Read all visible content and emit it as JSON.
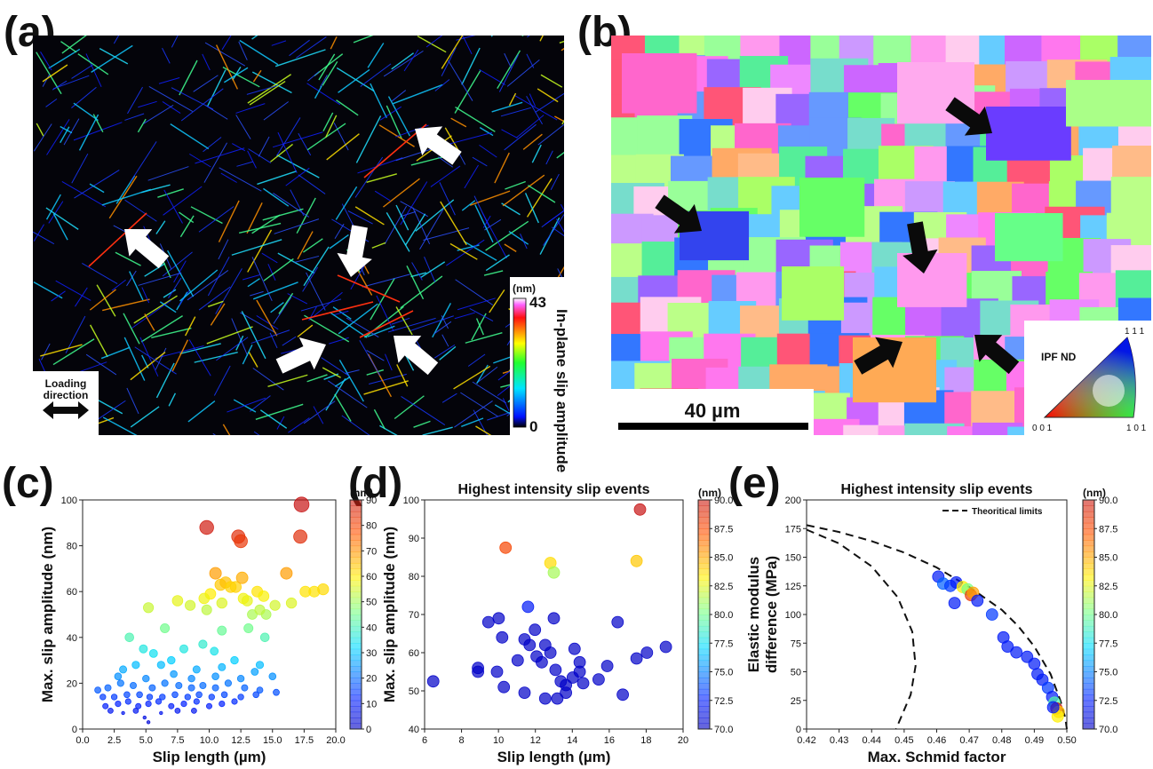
{
  "panels": {
    "a": {
      "letter": "(a)",
      "colorbar": {
        "unit": "(nm)",
        "max_label": "43",
        "min_label": "0",
        "label": "In-plane slip amplitude"
      },
      "loading_label_1": "Loading",
      "loading_label_2": "direction"
    },
    "b": {
      "letter": "(b)",
      "scalebar": "40 µm",
      "ipf": {
        "title": "IPF ND",
        "top": "1 1 1",
        "left": "0 0 1",
        "right": "1 0 1"
      }
    },
    "c": {
      "letter": "(c)"
    },
    "d": {
      "letter": "(d)"
    },
    "e": {
      "letter": "(e)"
    }
  },
  "colors": {
    "map_background": "#04040a",
    "arrow": "#ffffff",
    "arrow_dark": "#0a0a0a"
  },
  "chart_data": [
    {
      "id": "c",
      "type": "scatter",
      "title": "",
      "xlabel": "Slip length (µm)",
      "ylabel": "Max. slip amplitude (nm)",
      "xlim": [
        0.0,
        20.0
      ],
      "ylim": [
        0,
        100
      ],
      "xticks": [
        "0.0",
        "2.5",
        "5.0",
        "7.5",
        "10.0",
        "12.5",
        "15.0",
        "17.5",
        "20.0"
      ],
      "yticks": [
        "0",
        "20",
        "40",
        "60",
        "80",
        "100"
      ],
      "colorbar": {
        "label": "(nm)",
        "range": [
          0,
          90
        ],
        "ticks": [
          "0",
          "10",
          "20",
          "30",
          "40",
          "50",
          "60",
          "70",
          "80",
          "90"
        ]
      },
      "points": [
        [
          9.8,
          88
        ],
        [
          12.3,
          84
        ],
        [
          12.5,
          82
        ],
        [
          17.3,
          98
        ],
        [
          17.2,
          84
        ],
        [
          16.1,
          68
        ],
        [
          10.5,
          68
        ],
        [
          10.9,
          63
        ],
        [
          11.3,
          64
        ],
        [
          12.1,
          62
        ],
        [
          12.6,
          66
        ],
        [
          11.7,
          62
        ],
        [
          13.8,
          60
        ],
        [
          14.3,
          58
        ],
        [
          13.0,
          56
        ],
        [
          11.0,
          55
        ],
        [
          10.1,
          59
        ],
        [
          9.6,
          57
        ],
        [
          7.5,
          56
        ],
        [
          8.5,
          54
        ],
        [
          9.8,
          52
        ],
        [
          12.7,
          57
        ],
        [
          14.5,
          50
        ],
        [
          15.2,
          54
        ],
        [
          16.5,
          55
        ],
        [
          17.6,
          60
        ],
        [
          18.3,
          60
        ],
        [
          19.0,
          61
        ],
        [
          13.4,
          50
        ],
        [
          14.0,
          52
        ],
        [
          5.2,
          53
        ],
        [
          6.5,
          44
        ],
        [
          3.7,
          40
        ],
        [
          11.0,
          43
        ],
        [
          14.4,
          40
        ],
        [
          13.1,
          44
        ],
        [
          9.5,
          37
        ],
        [
          8.0,
          35
        ],
        [
          10.4,
          34
        ],
        [
          5.6,
          33
        ],
        [
          4.8,
          35
        ],
        [
          7.0,
          30
        ],
        [
          12.0,
          30
        ],
        [
          14.0,
          28
        ],
        [
          3.2,
          26
        ],
        [
          4.2,
          28
        ],
        [
          6.2,
          28
        ],
        [
          9.0,
          26
        ],
        [
          11.0,
          27
        ],
        [
          13.6,
          25
        ],
        [
          2.8,
          23
        ],
        [
          5.0,
          22
        ],
        [
          7.2,
          24
        ],
        [
          8.6,
          22
        ],
        [
          10.5,
          23
        ],
        [
          12.5,
          22
        ],
        [
          15.0,
          23
        ],
        [
          1.2,
          17
        ],
        [
          2.0,
          18
        ],
        [
          3.0,
          20
        ],
        [
          4.0,
          19
        ],
        [
          5.5,
          18
        ],
        [
          6.5,
          20
        ],
        [
          7.6,
          19
        ],
        [
          8.6,
          18
        ],
        [
          9.5,
          19
        ],
        [
          10.5,
          18
        ],
        [
          11.5,
          20
        ],
        [
          12.8,
          18
        ],
        [
          14.0,
          17
        ],
        [
          1.6,
          14
        ],
        [
          2.5,
          14
        ],
        [
          3.5,
          15
        ],
        [
          4.5,
          15
        ],
        [
          5.3,
          14
        ],
        [
          6.3,
          14
        ],
        [
          7.3,
          15
        ],
        [
          8.3,
          14
        ],
        [
          9.2,
          15
        ],
        [
          10.2,
          14
        ],
        [
          11.2,
          15
        ],
        [
          12.5,
          14
        ],
        [
          13.7,
          15
        ],
        [
          15.3,
          16
        ],
        [
          1.8,
          10
        ],
        [
          2.8,
          11
        ],
        [
          3.6,
          12
        ],
        [
          4.4,
          10
        ],
        [
          5.2,
          11
        ],
        [
          6.0,
          12
        ],
        [
          7.0,
          10
        ],
        [
          8.0,
          11
        ],
        [
          9.0,
          12
        ],
        [
          10.0,
          10
        ],
        [
          11.0,
          11
        ],
        [
          12.0,
          12
        ],
        [
          2.2,
          8
        ],
        [
          3.2,
          7
        ],
        [
          4.2,
          8
        ],
        [
          4.9,
          5
        ],
        [
          5.2,
          3
        ],
        [
          6.2,
          7
        ],
        [
          7.5,
          8
        ],
        [
          8.8,
          8
        ]
      ]
    },
    {
      "id": "d",
      "type": "scatter",
      "title": "Highest intensity slip events",
      "xlabel": "Slip length (µm)",
      "ylabel": "Max. slip amplitude (nm)",
      "xlim": [
        5.0,
        20.0
      ],
      "ylim": [
        40,
        100
      ],
      "xticks": [
        "6",
        "8",
        "10",
        "12",
        "14",
        "16",
        "18",
        "20"
      ],
      "yticks": [
        "40",
        "50",
        "60",
        "70",
        "80",
        "90",
        "100"
      ],
      "colorbar": {
        "label": "(nm)",
        "range": [
          70.0,
          90.0
        ],
        "ticks": [
          "70.0",
          "72.5",
          "75.0",
          "77.5",
          "80.0",
          "82.5",
          "85.0",
          "87.5",
          "90.0"
        ]
      },
      "points": [
        [
          17.5,
          97.5
        ],
        [
          9.7,
          87.5
        ],
        [
          12.3,
          83.5
        ],
        [
          17.3,
          84.0
        ],
        [
          12.5,
          81.0
        ],
        [
          11.0,
          72.0
        ],
        [
          8.7,
          68.0
        ],
        [
          9.3,
          69.0
        ],
        [
          12.5,
          69.0
        ],
        [
          16.2,
          68.0
        ],
        [
          10.8,
          63.5
        ],
        [
          11.4,
          66.0
        ],
        [
          9.5,
          64.0
        ],
        [
          12.0,
          62.0
        ],
        [
          13.7,
          61.0
        ],
        [
          19.0,
          61.5
        ],
        [
          17.9,
          60.0
        ],
        [
          17.3,
          58.5
        ],
        [
          8.1,
          56.0
        ],
        [
          8.1,
          55.0
        ],
        [
          9.2,
          55.0
        ],
        [
          11.1,
          62.0
        ],
        [
          11.5,
          59.0
        ],
        [
          11.8,
          57.5
        ],
        [
          12.3,
          60.0
        ],
        [
          12.6,
          55.5
        ],
        [
          13.2,
          51.5
        ],
        [
          13.6,
          53.5
        ],
        [
          14.0,
          57.5
        ],
        [
          14.0,
          55.0
        ],
        [
          14.2,
          52.0
        ],
        [
          15.1,
          53.0
        ],
        [
          15.6,
          56.5
        ],
        [
          16.5,
          49.0
        ],
        [
          5.5,
          52.5
        ],
        [
          9.6,
          51.0
        ],
        [
          10.8,
          49.5
        ],
        [
          12.0,
          48.0
        ],
        [
          12.7,
          48.0
        ],
        [
          13.2,
          49.5
        ],
        [
          12.9,
          52.5
        ],
        [
          10.4,
          58.0
        ]
      ]
    },
    {
      "id": "e",
      "type": "scatter",
      "title": "Highest intensity slip events",
      "xlabel": "Max. Schmid factor",
      "ylabel": "Elastic modulus difference (MPa)",
      "xlim": [
        0.42,
        0.5
      ],
      "ylim": [
        0,
        200
      ],
      "xticks": [
        "0.42",
        "0.43",
        "0.44",
        "0.45",
        "0.46",
        "0.47",
        "0.48",
        "0.49",
        "0.50"
      ],
      "yticks": [
        "0",
        "25",
        "50",
        "75",
        "100",
        "125",
        "150",
        "175",
        "200"
      ],
      "legend": {
        "label": "Theoritical limits",
        "position": "top-right"
      },
      "colorbar": {
        "label": "(nm)",
        "range": [
          70.0,
          90.0
        ],
        "ticks": [
          "70.0",
          "72.5",
          "75.0",
          "77.5",
          "80.0",
          "82.5",
          "85.0",
          "87.5",
          "90.0"
        ]
      },
      "limit_curves": [
        [
          [
            0.42,
            178
          ],
          [
            0.43,
            172
          ],
          [
            0.44,
            164
          ],
          [
            0.45,
            154
          ],
          [
            0.46,
            141
          ],
          [
            0.47,
            124
          ],
          [
            0.48,
            104
          ],
          [
            0.485,
            90
          ],
          [
            0.49,
            72
          ],
          [
            0.495,
            48
          ],
          [
            0.498,
            25
          ],
          [
            0.4995,
            10
          ],
          [
            0.5,
            0
          ]
        ],
        [
          [
            0.42,
            174
          ],
          [
            0.43,
            162
          ],
          [
            0.44,
            142
          ],
          [
            0.448,
            115
          ],
          [
            0.4525,
            85
          ],
          [
            0.4535,
            55
          ],
          [
            0.452,
            30
          ],
          [
            0.449,
            10
          ],
          [
            0.4475,
            0
          ]
        ]
      ],
      "points": [
        [
          0.4605,
          133,
          72
        ],
        [
          0.462,
          127,
          74
        ],
        [
          0.4642,
          125,
          73
        ],
        [
          0.466,
          128,
          72
        ],
        [
          0.468,
          124,
          83
        ],
        [
          0.4695,
          122,
          80
        ],
        [
          0.4705,
          117,
          88
        ],
        [
          0.4712,
          119,
          85
        ],
        [
          0.4655,
          110,
          72
        ],
        [
          0.4725,
          112,
          72
        ],
        [
          0.477,
          100,
          73
        ],
        [
          0.4805,
          80,
          72
        ],
        [
          0.4818,
          72,
          72
        ],
        [
          0.4845,
          67,
          72
        ],
        [
          0.4878,
          63,
          72
        ],
        [
          0.49,
          57,
          72
        ],
        [
          0.491,
          48,
          72
        ],
        [
          0.4925,
          43,
          72
        ],
        [
          0.4942,
          36,
          73
        ],
        [
          0.4955,
          28,
          72
        ],
        [
          0.4962,
          23,
          79
        ],
        [
          0.4968,
          18,
          90
        ],
        [
          0.4975,
          15,
          84
        ],
        [
          0.4972,
          11,
          83
        ],
        [
          0.4958,
          19,
          72
        ]
      ]
    }
  ]
}
